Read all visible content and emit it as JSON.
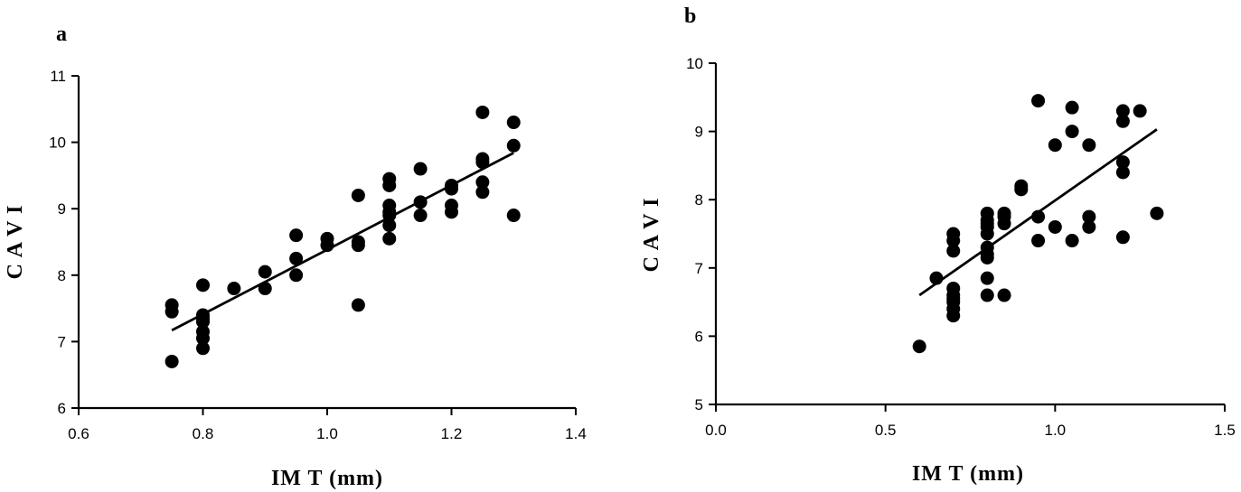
{
  "chart_data": [
    {
      "type": "scatter",
      "panel_label": "a",
      "xlabel": "IM T (mm)",
      "ylabel": "C A V I",
      "xlim": [
        0.6,
        1.4
      ],
      "ylim": [
        6,
        11
      ],
      "xticks": [
        0.6,
        0.8,
        1.0,
        1.2,
        1.4
      ],
      "xtick_labels": [
        "0.6",
        "0.8",
        "1.0",
        "1.2",
        "1.4"
      ],
      "yticks": [
        6,
        7,
        8,
        9,
        10,
        11
      ],
      "ytick_labels": [
        "6",
        "7",
        "8",
        "9",
        "10",
        "11"
      ],
      "grid": false,
      "points": {
        "x": [
          0.75,
          0.75,
          0.75,
          0.8,
          0.8,
          0.8,
          0.8,
          0.8,
          0.8,
          0.8,
          0.85,
          0.9,
          0.9,
          0.95,
          0.95,
          0.95,
          1.0,
          1.0,
          1.05,
          1.05,
          1.05,
          1.05,
          1.1,
          1.1,
          1.1,
          1.1,
          1.1,
          1.1,
          1.1,
          1.15,
          1.15,
          1.15,
          1.2,
          1.2,
          1.2,
          1.2,
          1.25,
          1.25,
          1.25,
          1.25,
          1.25,
          1.3,
          1.3,
          1.3
        ],
        "y": [
          7.55,
          7.45,
          6.7,
          7.85,
          7.4,
          7.35,
          7.15,
          7.05,
          6.9,
          7.3,
          7.8,
          8.05,
          7.8,
          8.6,
          8.25,
          8.0,
          8.55,
          8.45,
          9.2,
          8.5,
          8.45,
          7.55,
          9.45,
          9.35,
          9.05,
          8.95,
          8.75,
          8.55,
          8.9,
          9.6,
          9.1,
          8.9,
          9.35,
          9.3,
          9.05,
          8.95,
          10.45,
          9.75,
          9.7,
          9.4,
          9.25,
          10.3,
          9.95,
          8.9
        ]
      },
      "fit_line": {
        "x": [
          0.75,
          1.3
        ],
        "y": [
          7.17,
          9.84
        ]
      }
    },
    {
      "type": "scatter",
      "panel_label": "b",
      "xlabel": "IM T  (mm)",
      "ylabel": "C A V I",
      "xlim": [
        0.0,
        1.5
      ],
      "ylim": [
        5,
        10
      ],
      "xticks": [
        0.0,
        0.5,
        1.0,
        1.5
      ],
      "xtick_labels": [
        "0.0",
        "0.5",
        "1.0",
        "1.5"
      ],
      "yticks": [
        5,
        6,
        7,
        8,
        9,
        10
      ],
      "ytick_labels": [
        "5",
        "6",
        "7",
        "8",
        "9",
        "10"
      ],
      "grid": false,
      "points": {
        "x": [
          0.6,
          0.65,
          0.7,
          0.7,
          0.7,
          0.7,
          0.7,
          0.7,
          0.7,
          0.7,
          0.7,
          0.8,
          0.8,
          0.8,
          0.8,
          0.8,
          0.8,
          0.8,
          0.8,
          0.8,
          0.8,
          0.85,
          0.85,
          0.85,
          0.85,
          0.9,
          0.9,
          0.95,
          0.95,
          0.95,
          1.0,
          1.0,
          1.05,
          1.05,
          1.05,
          1.1,
          1.1,
          1.1,
          1.2,
          1.2,
          1.2,
          1.2,
          1.2,
          1.25,
          1.3
        ],
        "y": [
          5.85,
          6.85,
          7.5,
          7.4,
          7.25,
          6.7,
          6.6,
          6.5,
          6.4,
          6.3,
          6.55,
          7.8,
          7.7,
          7.6,
          7.5,
          7.3,
          7.2,
          7.15,
          6.85,
          6.6,
          7.65,
          7.8,
          7.75,
          7.65,
          6.6,
          8.2,
          8.15,
          9.45,
          7.75,
          7.4,
          8.8,
          7.6,
          9.35,
          9.0,
          7.4,
          8.8,
          7.75,
          7.6,
          9.3,
          9.15,
          8.55,
          8.4,
          7.45,
          9.3,
          7.8
        ]
      },
      "fit_line": {
        "x": [
          0.6,
          1.3
        ],
        "y": [
          6.6,
          9.03
        ]
      }
    }
  ]
}
